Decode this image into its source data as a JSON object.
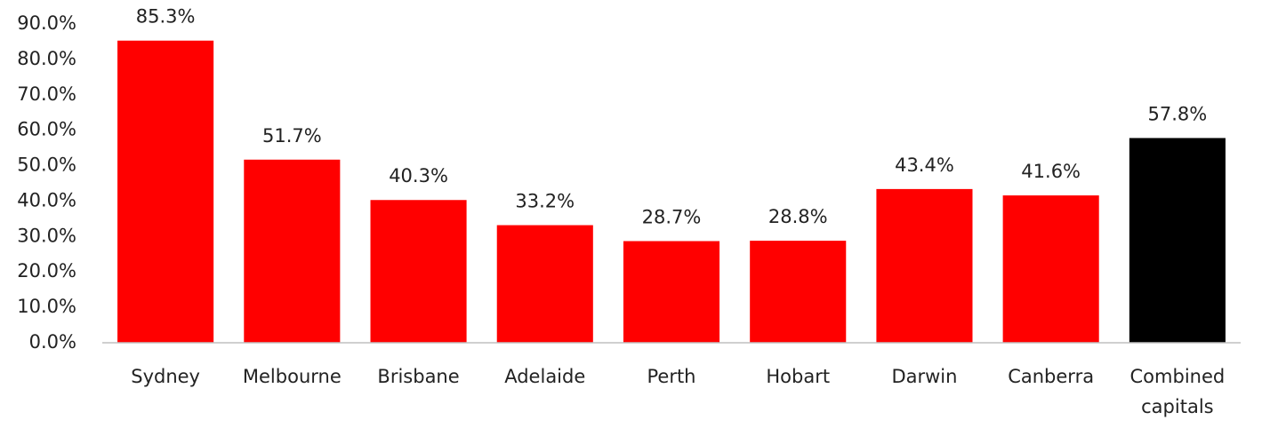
{
  "chart_data": {
    "type": "bar",
    "categories": [
      "Sydney",
      "Melbourne",
      "Brisbane",
      "Adelaide",
      "Perth",
      "Hobart",
      "Darwin",
      "Canberra",
      "Combined capitals"
    ],
    "values": [
      85.3,
      51.7,
      40.3,
      33.2,
      28.7,
      28.8,
      43.4,
      41.6,
      57.8
    ],
    "value_labels": [
      "85.3%",
      "51.7%",
      "40.3%",
      "33.2%",
      "28.7%",
      "28.8%",
      "43.4%",
      "41.6%",
      "57.8%"
    ],
    "colors": [
      "#ff0000",
      "#ff0000",
      "#ff0000",
      "#ff0000",
      "#ff0000",
      "#ff0000",
      "#ff0000",
      "#ff0000",
      "#000000"
    ],
    "ylim": [
      0,
      90
    ],
    "yticks": [
      {
        "value": 0,
        "label": "0.0%"
      },
      {
        "value": 10,
        "label": "10.0%"
      },
      {
        "value": 20,
        "label": "20.0%"
      },
      {
        "value": 30,
        "label": "30.0%"
      },
      {
        "value": 40,
        "label": "40.0%"
      },
      {
        "value": 50,
        "label": "50.0%"
      },
      {
        "value": 60,
        "label": "60.0%"
      },
      {
        "value": 70,
        "label": "70.0%"
      },
      {
        "value": 80,
        "label": "80.0%"
      },
      {
        "value": 90,
        "label": "90.0%"
      }
    ],
    "grid": false
  }
}
